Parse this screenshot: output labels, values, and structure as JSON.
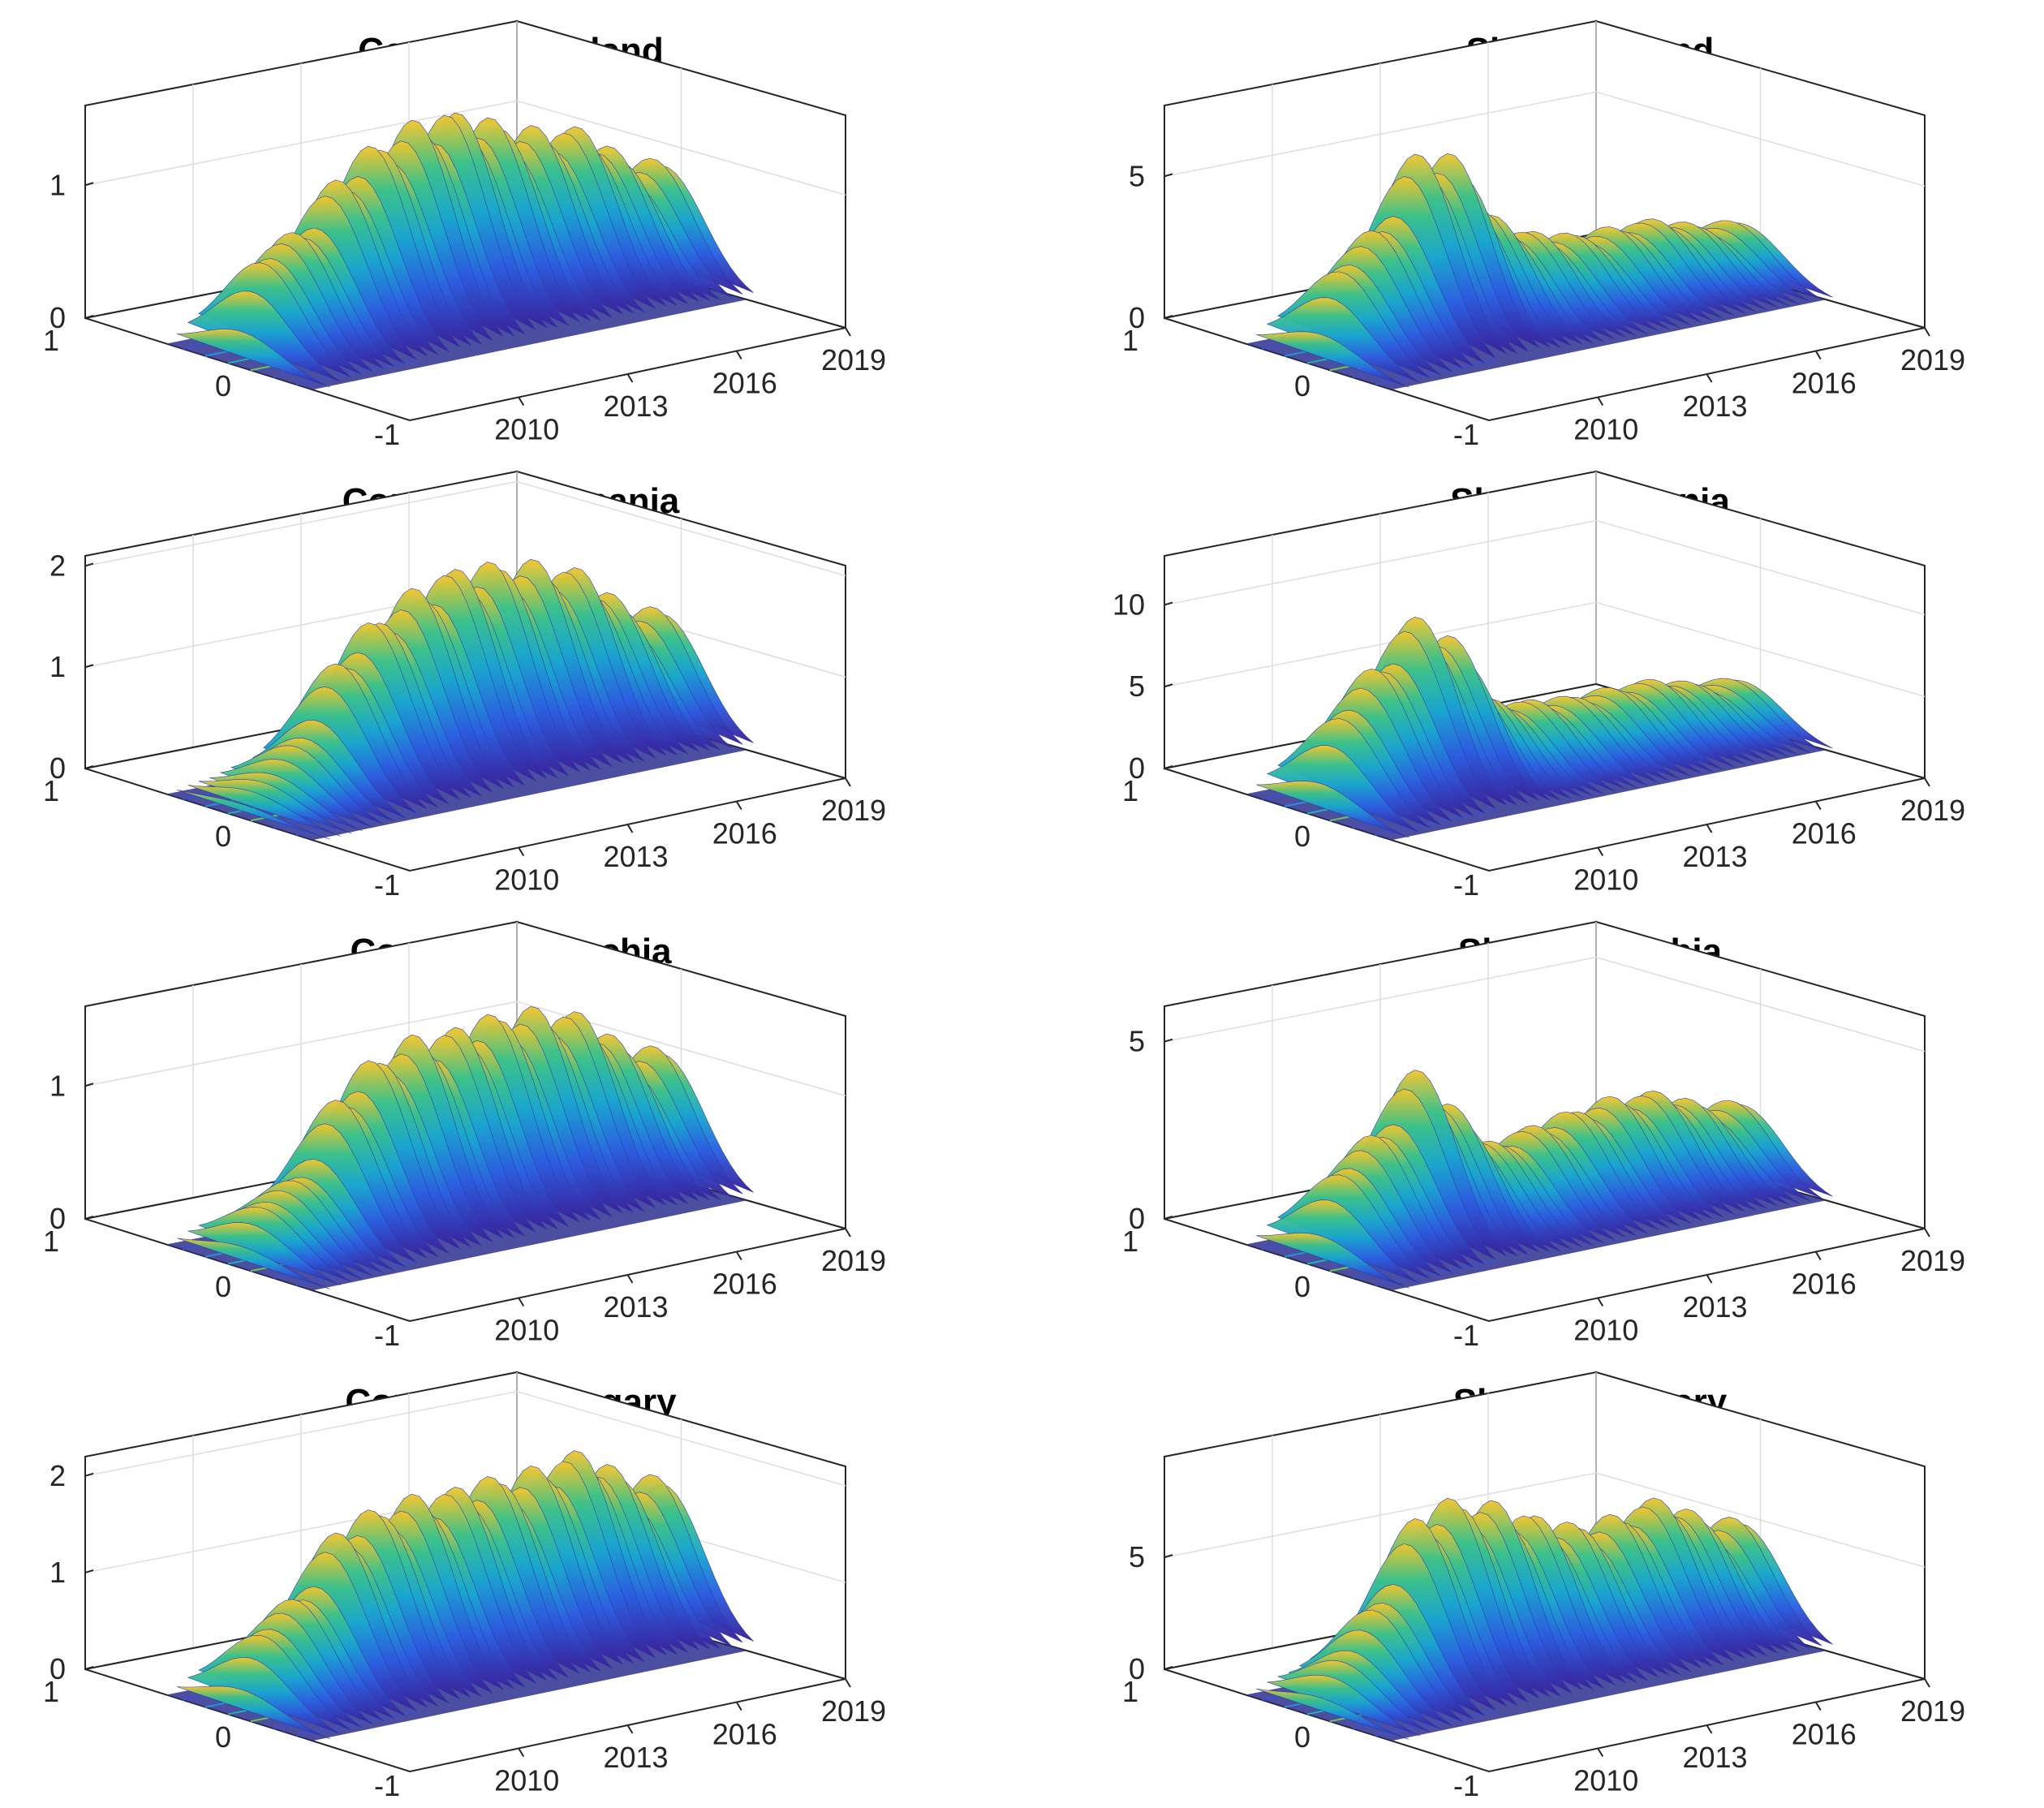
{
  "chart_data": [
    {
      "type": "surface",
      "title": "Constant - Poland",
      "zticks": [
        "0",
        "1"
      ],
      "zlim": [
        0,
        1.6
      ],
      "xticks": [
        "2010",
        "2013",
        "2016",
        "2019"
      ],
      "xlim": [
        2007,
        2019
      ],
      "yticks": [
        "1",
        "0",
        "-1"
      ],
      "ylim": [
        -1,
        1
      ],
      "ridge_x": [
        2007,
        2008,
        2009,
        2010,
        2011,
        2012,
        2013,
        2014,
        2015,
        2016,
        2017,
        2018
      ],
      "ridge_z": [
        0.0,
        0.85,
        0.9,
        1.25,
        1.45,
        1.55,
        1.6,
        1.5,
        1.35,
        1.3,
        1.25,
        0.9
      ]
    },
    {
      "type": "surface",
      "title": "Slope - Poland",
      "zticks": [
        "0",
        "5"
      ],
      "zlim": [
        0,
        7.5
      ],
      "xticks": [
        "2010",
        "2013",
        "2016",
        "2019"
      ],
      "xlim": [
        2007,
        2019
      ],
      "yticks": [
        "1",
        "0",
        "-1"
      ],
      "ylim": [
        -1,
        1
      ],
      "ridge_x": [
        2007,
        2008,
        2009,
        2010,
        2011,
        2012,
        2013,
        2014,
        2015,
        2016,
        2017,
        2018
      ],
      "ridge_z": [
        0.0,
        3.6,
        4.4,
        6.8,
        6.4,
        4.0,
        3.2,
        2.8,
        2.6,
        2.7,
        2.6,
        2.0
      ]
    },
    {
      "type": "surface",
      "title": "Constant - Romania",
      "zticks": [
        "0",
        "1",
        "2"
      ],
      "zlim": [
        0,
        2.1
      ],
      "xticks": [
        "2010",
        "2013",
        "2016",
        "2019"
      ],
      "xlim": [
        2007,
        2019
      ],
      "yticks": [
        "1",
        "0",
        "-1"
      ],
      "ylim": [
        -1,
        1
      ],
      "ridge_x": [
        2007,
        2008,
        2009,
        2010,
        2011,
        2012,
        2013,
        2014,
        2015,
        2016,
        2017,
        2018
      ],
      "ridge_z": [
        0.0,
        0.3,
        0.6,
        1.3,
        1.65,
        1.85,
        2.0,
        2.0,
        1.95,
        1.85,
        1.7,
        1.2
      ]
    },
    {
      "type": "surface",
      "title": "Slope - Romania",
      "zticks": [
        "0",
        "5",
        "10"
      ],
      "zlim": [
        0,
        13
      ],
      "xticks": [
        "2010",
        "2013",
        "2016",
        "2019"
      ],
      "xlim": [
        2007,
        2019
      ],
      "yticks": [
        "1",
        "0",
        "-1"
      ],
      "ylim": [
        -1,
        1
      ],
      "ridge_x": [
        2007,
        2008,
        2009,
        2010,
        2011,
        2012,
        2013,
        2014,
        2015,
        2016,
        2017,
        2018
      ],
      "ridge_z": [
        0.0,
        6.5,
        8.5,
        11.0,
        9.0,
        4.8,
        4.3,
        4.0,
        3.9,
        4.0,
        3.9,
        3.0
      ]
    },
    {
      "type": "surface",
      "title": "Constant - Czechia",
      "zticks": [
        "0",
        "1"
      ],
      "zlim": [
        0,
        1.6
      ],
      "xticks": [
        "2010",
        "2013",
        "2016",
        "2019"
      ],
      "xlim": [
        2007,
        2019
      ],
      "yticks": [
        "1",
        "0",
        "-1"
      ],
      "ylim": [
        -1,
        1
      ],
      "ridge_x": [
        2007,
        2008,
        2009,
        2010,
        2011,
        2012,
        2013,
        2014,
        2015,
        2016,
        2017,
        2018
      ],
      "ridge_z": [
        0.0,
        0.45,
        0.55,
        1.1,
        1.35,
        1.45,
        1.45,
        1.5,
        1.5,
        1.45,
        1.35,
        1.0
      ]
    },
    {
      "type": "surface",
      "title": "Slope - Czechia",
      "zticks": [
        "0",
        "5"
      ],
      "zlim": [
        0,
        6
      ],
      "xticks": [
        "2010",
        "2013",
        "2016",
        "2019"
      ],
      "xlim": [
        2007,
        2019
      ],
      "yticks": [
        "1",
        "0",
        "-1"
      ],
      "ylim": [
        -1,
        1
      ],
      "ridge_x": [
        2007,
        2008,
        2009,
        2010,
        2011,
        2012,
        2013,
        2014,
        2015,
        2016,
        2017,
        2018
      ],
      "ridge_z": [
        0.0,
        2.8,
        3.4,
        5.0,
        3.6,
        2.4,
        2.6,
        2.8,
        3.0,
        3.0,
        2.9,
        2.2
      ]
    },
    {
      "type": "surface",
      "title": "Constant - Hungary",
      "zticks": [
        "0",
        "1",
        "2"
      ],
      "zlim": [
        0,
        2.2
      ],
      "xticks": [
        "2010",
        "2013",
        "2016",
        "2019"
      ],
      "xlim": [
        2007,
        2019
      ],
      "yticks": [
        "1",
        "0",
        "-1"
      ],
      "ylim": [
        -1,
        1
      ],
      "ridge_x": [
        2007,
        2008,
        2009,
        2010,
        2011,
        2012,
        2013,
        2014,
        2015,
        2016,
        2017,
        2018
      ],
      "ridge_z": [
        0.0,
        0.9,
        1.1,
        1.7,
        1.85,
        1.9,
        1.9,
        1.95,
        1.9,
        2.0,
        2.05,
        1.6
      ]
    },
    {
      "type": "surface",
      "title": "Slope - Hungary",
      "zticks": [
        "0",
        "5"
      ],
      "zlim": [
        0,
        9.5
      ],
      "xticks": [
        "2010",
        "2013",
        "2016",
        "2019"
      ],
      "xlim": [
        2007,
        2019
      ],
      "yticks": [
        "1",
        "0",
        "-1"
      ],
      "ylim": [
        -1,
        1
      ],
      "ridge_x": [
        2007,
        2008,
        2009,
        2010,
        2011,
        2012,
        2013,
        2014,
        2015,
        2016,
        2017,
        2018
      ],
      "ridge_z": [
        0.0,
        2.5,
        4.5,
        8.0,
        8.5,
        8.0,
        7.2,
        6.4,
        6.0,
        6.5,
        6.7,
        5.0
      ]
    }
  ]
}
